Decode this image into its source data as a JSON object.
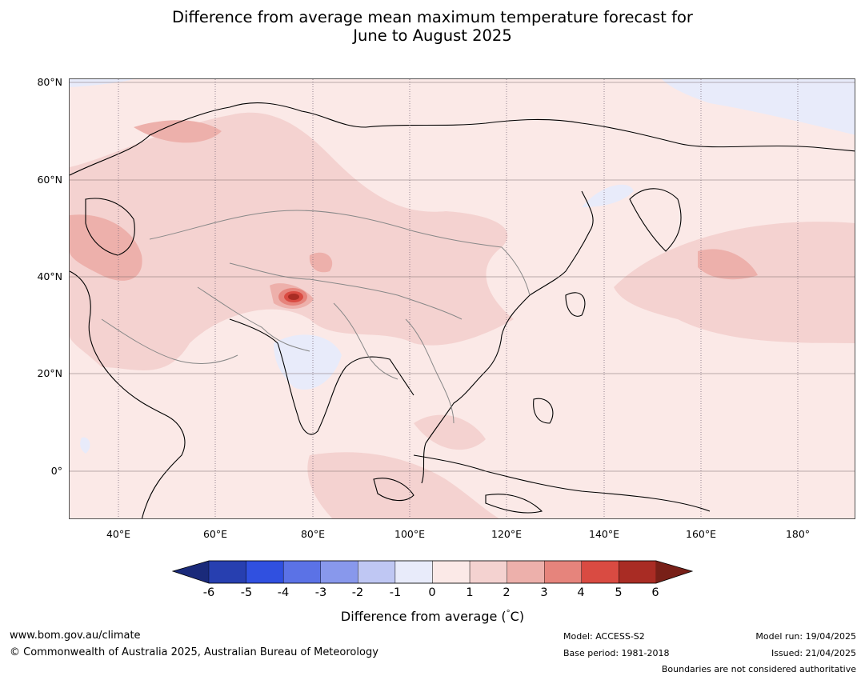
{
  "title": {
    "line1": "Difference from average mean maximum temperature forecast for",
    "line2": "June to August 2025"
  },
  "map": {
    "region": "Asia",
    "projection": "equirectangular",
    "lon_range": [
      30,
      192
    ],
    "lat_range": [
      -10,
      81
    ],
    "lat_labels": [
      "80°N",
      "60°N",
      "40°N",
      "20°N",
      "0°"
    ],
    "lon_labels": [
      "40°E",
      "60°E",
      "80°E",
      "100°E",
      "120°E",
      "140°E",
      "160°E",
      "180°"
    ],
    "dominant_anomaly": "0 to 1",
    "features": [
      {
        "kind": "warm-core",
        "range": "5 to 6",
        "near": "western Himalaya / Kashmir"
      },
      {
        "kind": "warm",
        "range": "2 to 3",
        "near": "Caspian Sea / western Central Asia"
      },
      {
        "kind": "warm",
        "range": "2 to 3",
        "near": "North Pacific ~40°N 160°E"
      },
      {
        "kind": "cool",
        "range": "-1 to 0",
        "near": "central India"
      },
      {
        "kind": "cool",
        "range": "-1 to 0",
        "near": "Sea of Okhotsk"
      },
      {
        "kind": "cool",
        "range": "-1 to 0",
        "near": "Arctic coast"
      }
    ]
  },
  "colorbar": {
    "ticks": [
      "-6",
      "-5",
      "-4",
      "-3",
      "-2",
      "-1",
      "0",
      "1",
      "2",
      "3",
      "4",
      "5",
      "6"
    ],
    "colors": [
      "#1a2a7a",
      "#273fb0",
      "#3050e0",
      "#5b72e6",
      "#8898ec",
      "#bfc7f3",
      "#e8ebfa",
      "#fbe9e7",
      "#f4d2d0",
      "#edb0ab",
      "#e6847c",
      "#d94b42",
      "#a92c24",
      "#782018"
    ],
    "label": "Difference from average ($^\\circ$C)",
    "label_text": "Difference from average (",
    "label_degree": "°",
    "label_unit": "C)"
  },
  "footer": {
    "website": "www.bom.gov.au/climate",
    "copyright": "© Commonwealth of Australia 2025, Australian Bureau of Meteorology",
    "model": "Model: ACCESS-S2",
    "base_period": "Base period: 1981-2018",
    "model_run": "Model run: 19/04/2025",
    "issued": "Issued: 21/04/2025",
    "disclaimer": "Boundaries are not considered authoritative"
  }
}
